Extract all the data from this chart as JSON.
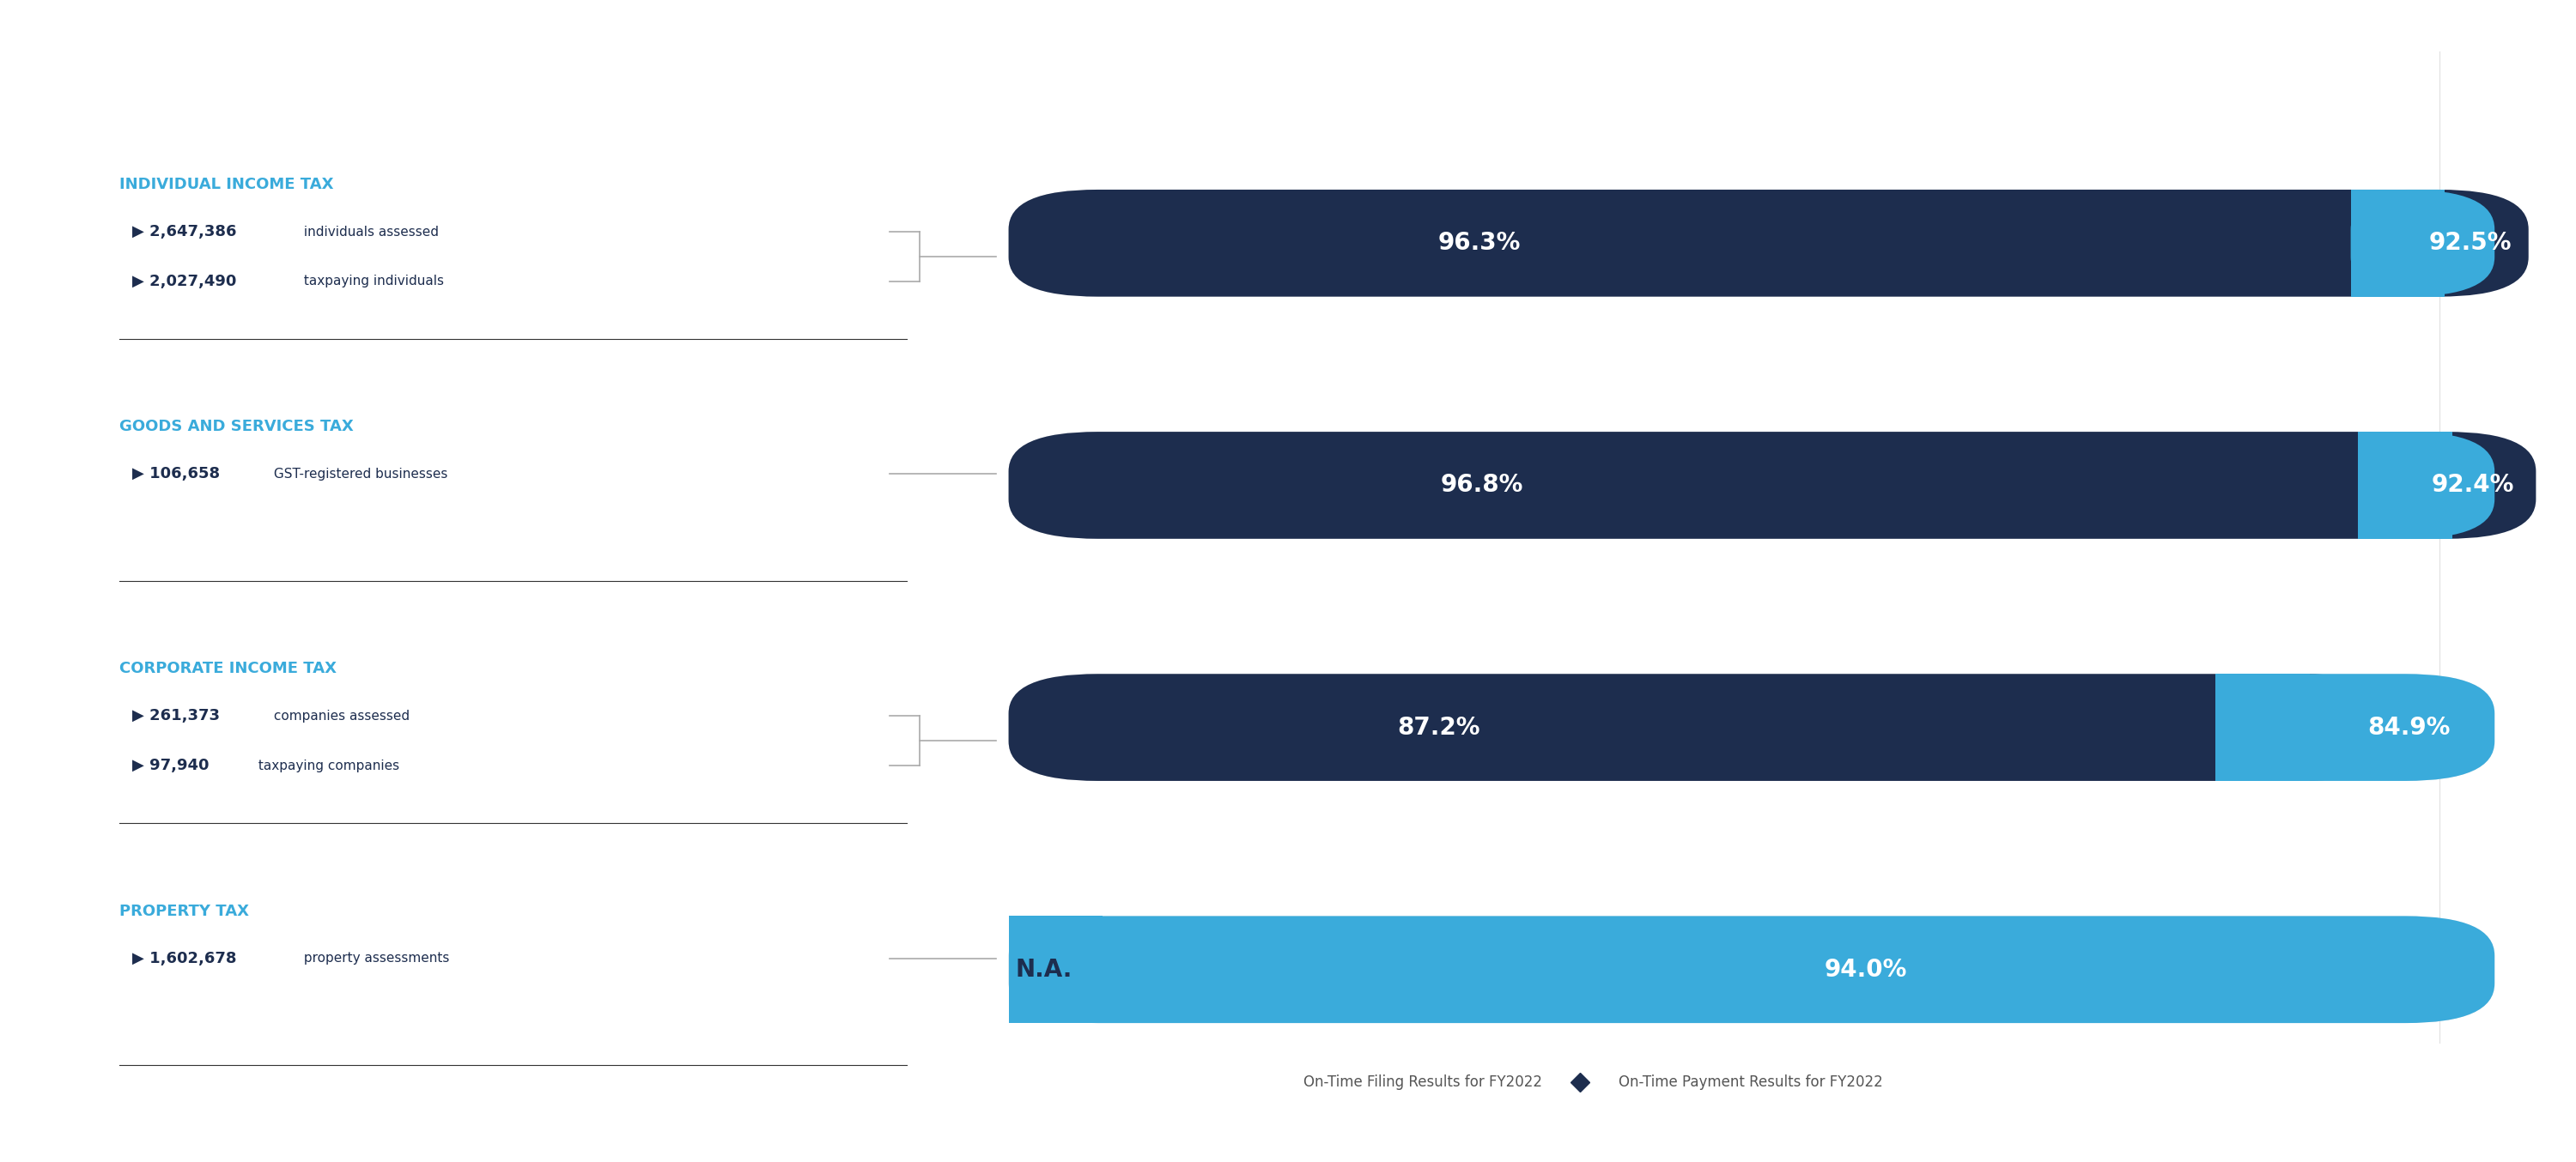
{
  "categories": [
    "INDIVIDUAL INCOME TAX",
    "GOODS AND SERVICES TAX",
    "CORPORATE INCOME TAX",
    "PROPERTY TAX"
  ],
  "subtexts": [
    [
      [
        "2,647,386",
        " individuals assessed"
      ],
      [
        "2,027,490",
        " taxpaying individuals"
      ]
    ],
    [
      [
        "106,658",
        " GST-registered businesses"
      ]
    ],
    [
      [
        "261,373",
        " companies assessed"
      ],
      [
        "97,940",
        " taxpaying companies"
      ]
    ],
    [
      [
        "1,602,678",
        " property assessments"
      ]
    ]
  ],
  "filing_values": [
    96.3,
    96.8,
    87.2,
    null
  ],
  "payment_values": [
    92.5,
    92.4,
    84.9,
    94.0
  ],
  "filing_labels": [
    "96.3%",
    "96.8%",
    "87.2%",
    "N.A."
  ],
  "payment_labels": [
    "92.5%",
    "92.4%",
    "84.9%",
    "94.0%"
  ],
  "filing_color": "#1d2d4e",
  "payment_color": "#3aabdb",
  "na_color": "#e5e5e5",
  "bar_bg_color": "#e5e5e5",
  "title_color": "#3aabdb",
  "text_color": "#1d2d4e",
  "background_color": "#ffffff",
  "legend_filing": "On-Time Filing Results for FY2022",
  "legend_payment": "On-Time Payment Results for FY2022",
  "legend_diamond_color": "#1d2d4e"
}
